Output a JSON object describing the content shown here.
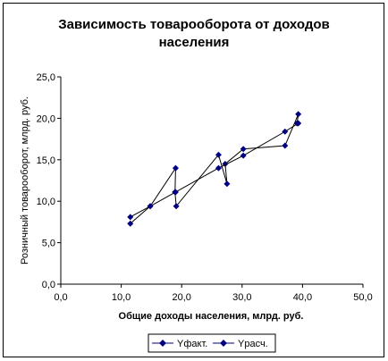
{
  "chart_data": {
    "type": "line",
    "title_lines": [
      "Зависимость товарооборота от доходов",
      "населения"
    ],
    "xlabel": "Общие доходы населения, млрд. руб.",
    "ylabel": "Розничный товарооборот, млрд. руб.",
    "xlim": [
      0,
      50
    ],
    "ylim": [
      0,
      25
    ],
    "x_ticks": [
      "0,0",
      "10,0",
      "20,0",
      "30,0",
      "40,0",
      "50,0"
    ],
    "y_ticks": [
      "0,0",
      "5,0",
      "10,0",
      "15,0",
      "20,0",
      "25,0"
    ],
    "grid": false,
    "legend_position": "bottom",
    "series": [
      {
        "name": "Yфакт.",
        "color": "#000080",
        "points": [
          [
            11.5,
            7.3
          ],
          [
            14.8,
            9.4
          ],
          [
            19.0,
            14.0
          ],
          [
            18.9,
            11.1
          ],
          [
            19.1,
            9.4
          ],
          [
            26.1,
            15.6
          ],
          [
            27.5,
            12.1
          ],
          [
            27.2,
            14.5
          ],
          [
            30.2,
            16.3
          ],
          [
            37.1,
            16.7
          ],
          [
            39.3,
            20.5
          ],
          [
            39.1,
            19.4
          ]
        ]
      },
      {
        "name": "Yрасч.",
        "color": "#000080",
        "points": [
          [
            11.5,
            8.1
          ],
          [
            14.8,
            9.4
          ],
          [
            19.0,
            11.1
          ],
          [
            26.1,
            14.0
          ],
          [
            30.2,
            15.5
          ],
          [
            37.1,
            18.4
          ],
          [
            39.3,
            19.4
          ]
        ]
      }
    ]
  }
}
